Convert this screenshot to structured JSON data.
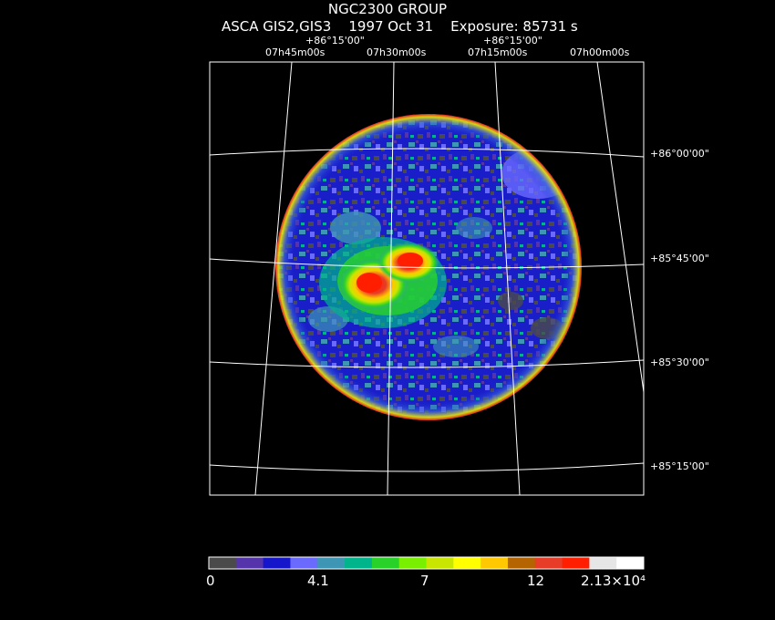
{
  "title": "NGC2300 GROUP",
  "subtitle": "ASCA GIS2,GIS3    1997 Oct 31    Exposure: 85731 s",
  "top_dec_labels": [
    "+86°15'00\"",
    "+86°15'00\""
  ],
  "ra_labels": [
    "07h45m00s",
    "07h30m00s",
    "07h15m00s",
    "07h00m00s"
  ],
  "right_dec_labels": [
    "+86°00'00\"",
    "+85°45'00\"",
    "+85°30'00\"",
    "+85°15'00\""
  ],
  "colorbar": {
    "colors": [
      "#4a4a4a",
      "#5533aa",
      "#1515cc",
      "#6a6aff",
      "#3c96b4",
      "#00b48c",
      "#28d228",
      "#78f000",
      "#c8e600",
      "#ffff00",
      "#ffc800",
      "#b46400",
      "#e63c28",
      "#ff1e00",
      "#e6e6e6",
      "#ffffff"
    ],
    "tick_labels": [
      "0",
      "4.1",
      "7",
      "12",
      "2.13×10⁴"
    ]
  }
}
